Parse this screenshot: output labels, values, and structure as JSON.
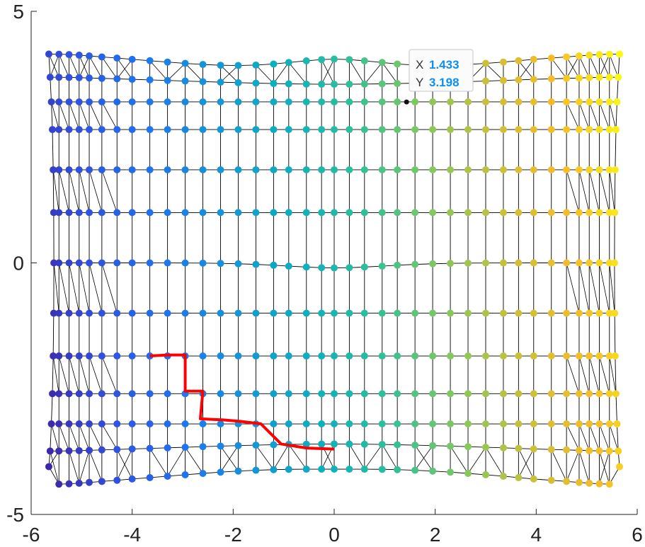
{
  "chart_data": {
    "type": "scatter",
    "title": "",
    "xlabel": "",
    "ylabel": "",
    "xlim": [
      -6,
      6
    ],
    "ylim": [
      -5,
      5
    ],
    "xticks": [
      -6,
      -4,
      -2,
      0,
      2,
      4,
      6
    ],
    "yticks": [
      -5,
      0,
      5
    ],
    "grid": false,
    "colormap": "parula",
    "colormap_stops": [
      "#3e26a8",
      "#2f52e0",
      "#1e74f4",
      "#1496d7",
      "#0bb0bf",
      "#2dc09a",
      "#80c95e",
      "#c9c03a",
      "#f6bd27",
      "#f9fb15"
    ],
    "mesh": {
      "description_x_columns": [
        -5.65,
        -5.45,
        -5.25,
        -5.05,
        -4.85,
        -4.6,
        -4.3,
        -4.0,
        -3.65,
        -3.3,
        -2.95,
        -2.6,
        -2.25,
        -1.9,
        -1.55,
        -1.2,
        -0.9,
        -0.55,
        -0.25,
        0.0,
        0.3,
        0.6,
        0.95,
        1.25,
        1.6,
        1.95,
        2.3,
        2.65,
        3.0,
        3.35,
        3.65,
        3.95,
        4.3,
        4.6,
        4.85,
        5.05,
        5.25,
        5.45,
        5.65
      ],
      "description_y_rows": [
        3.8,
        3.55,
        3.2,
        2.65,
        1.85,
        1.0,
        0.0,
        -1.0,
        -1.85,
        -2.6,
        -3.2,
        -3.6,
        -4.05
      ],
      "top_edge_y": [
        4.15,
        3.55,
        3.4,
        3.35,
        3.35,
        3.35,
        3.35,
        3.4,
        3.45,
        3.5,
        3.55,
        3.6,
        3.7,
        3.75,
        3.75,
        3.7,
        3.65,
        3.6,
        3.55,
        3.45,
        3.4,
        3.35,
        3.3,
        3.3,
        3.35,
        3.4,
        3.55,
        3.8,
        4.15
      ],
      "bottom_edge_y": [
        -4.05,
        -3.6,
        -3.55,
        -3.5,
        -3.45,
        -3.45,
        -3.45,
        -3.5,
        -3.55,
        -3.6,
        -3.65,
        -3.7,
        -3.72,
        -3.72,
        -3.7,
        -3.65,
        -3.6,
        -3.55,
        -3.55,
        -3.55,
        -3.55,
        -3.55,
        -3.55,
        -3.55,
        -3.55,
        -3.55,
        -3.6,
        -3.65,
        -4.05
      ]
    },
    "path": {
      "color": "#ff0000",
      "points": [
        [
          -3.65,
          -1.85
        ],
        [
          -3.3,
          -1.83
        ],
        [
          -2.95,
          -1.83
        ],
        [
          -2.95,
          -2.55
        ],
        [
          -2.6,
          -2.55
        ],
        [
          -2.65,
          -3.1
        ],
        [
          -2.2,
          -3.12
        ],
        [
          -1.85,
          -3.15
        ],
        [
          -1.45,
          -3.2
        ],
        [
          -1.05,
          -3.6
        ],
        [
          -0.55,
          -3.68
        ],
        [
          0.0,
          -3.7
        ]
      ]
    },
    "datatip": {
      "x_label": "X",
      "x_value": "1.433",
      "y_label": "Y",
      "y_value": "3.198",
      "point": [
        1.433,
        3.198
      ],
      "value_color": "#0d8ff2"
    }
  }
}
